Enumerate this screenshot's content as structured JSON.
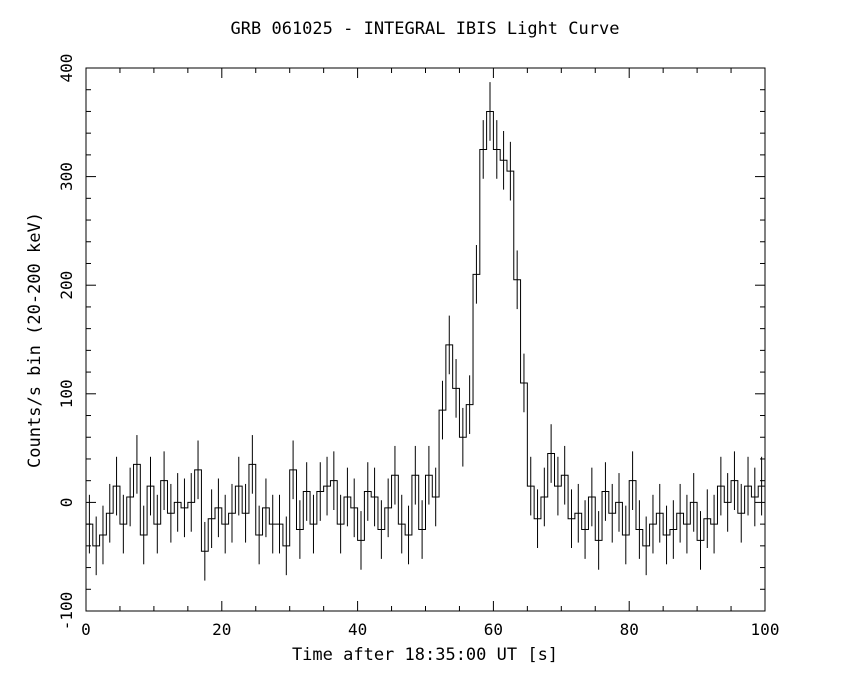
{
  "chart_data": {
    "type": "line",
    "title": "GRB 061025 - INTEGRAL IBIS Light Curve",
    "xlabel": "Time after 18:35:00 UT [s]",
    "ylabel": "Counts/s bin (20-200 keV)",
    "xlim": [
      0,
      100
    ],
    "ylim": [
      -100,
      400
    ],
    "xticks": [
      0,
      20,
      40,
      60,
      80,
      100
    ],
    "yticks": [
      -100,
      0,
      100,
      200,
      300,
      400
    ],
    "xtick_labels": [
      "0",
      "20",
      "40",
      "60",
      "80",
      "100"
    ],
    "ytick_labels": [
      "-100",
      "0",
      "100",
      "200",
      "300",
      "400"
    ],
    "grid": false,
    "bin_width": 1,
    "error": 27,
    "series": [
      {
        "bin_start": [
          0,
          1,
          2,
          3,
          4,
          5,
          6,
          7,
          8,
          9,
          10,
          11,
          12,
          13,
          14,
          15,
          16,
          17,
          18,
          19,
          20,
          21,
          22,
          23,
          24,
          25,
          26,
          27,
          28,
          29,
          30,
          31,
          32,
          33,
          34,
          35,
          36,
          37,
          38,
          39,
          40,
          41,
          42,
          43,
          44,
          45,
          46,
          47,
          48,
          49,
          50,
          51,
          52,
          53,
          54,
          55,
          56,
          57,
          58,
          59,
          60,
          61,
          62,
          63,
          64,
          65,
          66,
          67,
          68,
          69,
          70,
          71,
          72,
          73,
          74,
          75,
          76,
          77,
          78,
          79,
          80,
          81,
          82,
          83,
          84,
          85,
          86,
          87,
          88,
          89,
          90,
          91,
          92,
          93,
          94,
          95,
          96,
          97,
          98,
          99
        ],
        "values": [
          -20,
          -40,
          -30,
          -10,
          15,
          -20,
          5,
          35,
          -30,
          15,
          -20,
          20,
          -10,
          0,
          -5,
          0,
          30,
          -45,
          -15,
          -5,
          -20,
          -10,
          15,
          -10,
          35,
          -30,
          -5,
          -20,
          -20,
          -40,
          30,
          -25,
          10,
          -20,
          10,
          15,
          20,
          -20,
          5,
          -5,
          -35,
          10,
          5,
          -25,
          -5,
          25,
          -20,
          -30,
          25,
          -25,
          25,
          5,
          85,
          145,
          105,
          60,
          90,
          210,
          325,
          360,
          325,
          315,
          305,
          205,
          110,
          15,
          -15,
          5,
          45,
          15,
          25,
          -15,
          -10,
          -25,
          5,
          -35,
          10,
          -10,
          0,
          -30,
          20,
          -25,
          -40,
          -20,
          -10,
          -30,
          -25,
          -10,
          -20,
          0,
          -35,
          -15,
          -20,
          15,
          0,
          20,
          -10,
          15,
          5,
          15
        ]
      }
    ]
  }
}
